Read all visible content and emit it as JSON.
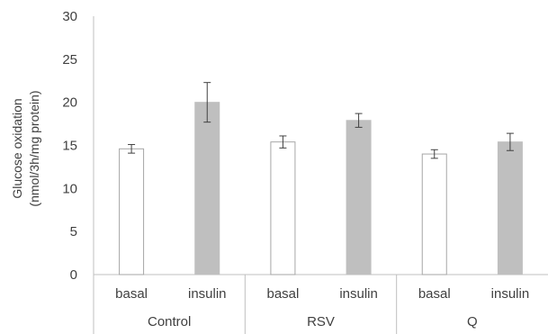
{
  "chart_data": {
    "type": "bar",
    "ylabel": "Glucose oxidation",
    "ylabel_unit": "(nmol/3h/mg protein)",
    "ylim": [
      0,
      30
    ],
    "yticks": [
      "0",
      "5",
      "10",
      "15",
      "20",
      "25",
      "30"
    ],
    "groups": [
      {
        "name": "Control",
        "bars": [
          {
            "label": "basal",
            "value": 14.6,
            "error": 0.5
          },
          {
            "label": "insulin",
            "value": 20.0,
            "error": 2.3
          }
        ]
      },
      {
        "name": "RSV",
        "bars": [
          {
            "label": "basal",
            "value": 15.4,
            "error": 0.7
          },
          {
            "label": "insulin",
            "value": 17.9,
            "error": 0.8
          }
        ]
      },
      {
        "name": "Q",
        "bars": [
          {
            "label": "basal",
            "value": 14.0,
            "error": 0.5
          },
          {
            "label": "insulin",
            "value": 15.4,
            "error": 1.0
          }
        ]
      }
    ],
    "colors": {
      "basal_fill": "#ffffff",
      "basal_stroke": "#a6a6a6",
      "insulin_fill": "#bfbfbf",
      "insulin_stroke": "#bfbfbf",
      "axis": "#bfbfbf",
      "error": "#404040",
      "text": "#404040"
    }
  }
}
